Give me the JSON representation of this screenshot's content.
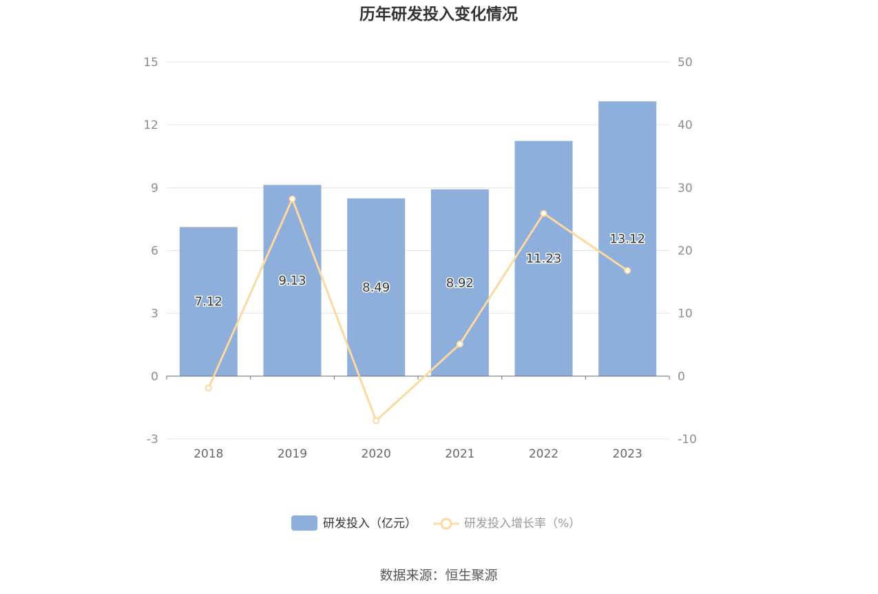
{
  "chart_data": {
    "type": "bar+line",
    "title": "历年研发投入变化情况",
    "categories": [
      "2018",
      "2019",
      "2020",
      "2021",
      "2022",
      "2023"
    ],
    "series": [
      {
        "name": "研发投入（亿元）",
        "type": "bar",
        "axis": "left",
        "color": "#8eaedb",
        "values": [
          7.12,
          9.13,
          8.49,
          8.92,
          11.23,
          13.12
        ],
        "labels": [
          "7.12",
          "9.13",
          "8.49",
          "8.92",
          "11.23",
          "13.12"
        ]
      },
      {
        "name": "研发投入增长率（%）",
        "type": "line",
        "axis": "right",
        "color": "#fbd9a0",
        "values": [
          -1.9,
          28.2,
          -7.1,
          5.1,
          25.9,
          16.8
        ]
      }
    ],
    "y_left": {
      "min": -3,
      "max": 15,
      "ticks": [
        "-3",
        "0",
        "3",
        "6",
        "9",
        "12",
        "15"
      ]
    },
    "y_right": {
      "min": -10,
      "max": 50,
      "ticks": [
        "-10",
        "0",
        "10",
        "20",
        "30",
        "40",
        "50"
      ]
    },
    "grid": true,
    "legend_position": "bottom-center"
  },
  "source": "数据来源：恒生聚源"
}
